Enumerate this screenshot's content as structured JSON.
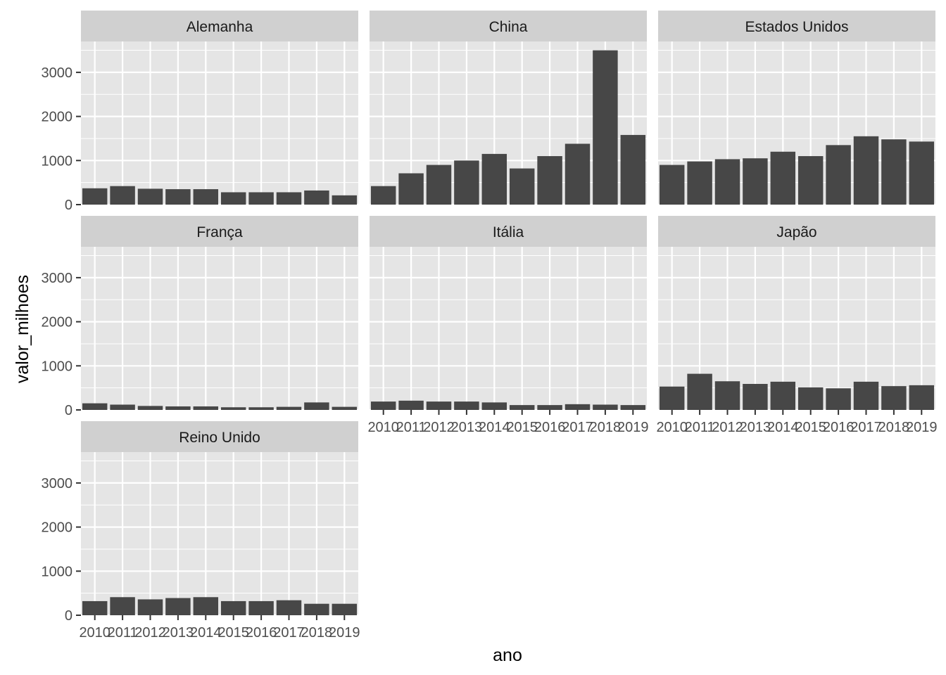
{
  "chart_data": {
    "type": "bar",
    "facet_layout": "wrap 3 columns",
    "xlabel": "ano",
    "ylabel": "valor_milhoes",
    "ylim": [
      0,
      3700
    ],
    "y_ticks": [
      0,
      1000,
      2000,
      3000
    ],
    "x_tick_labels": [
      "2010",
      "2011",
      "2012",
      "2013",
      "2014",
      "2015",
      "2016",
      "2017",
      "2018",
      "2019"
    ],
    "grid": true,
    "bar_color": "#474747",
    "panel_background": "#e5e5e5",
    "strip_background": "#d0d0d0",
    "grid_color": "#ffffff",
    "facets": [
      {
        "name": "Alemanha",
        "values": [
          370,
          420,
          360,
          350,
          350,
          280,
          280,
          280,
          320,
          210
        ]
      },
      {
        "name": "China",
        "values": [
          420,
          710,
          900,
          1000,
          1150,
          820,
          1100,
          1380,
          3500,
          1580
        ]
      },
      {
        "name": "Estados Unidos",
        "values": [
          900,
          980,
          1030,
          1050,
          1200,
          1100,
          1350,
          1550,
          1480,
          1430
        ]
      },
      {
        "name": "França",
        "values": [
          150,
          120,
          90,
          80,
          80,
          60,
          60,
          70,
          170,
          70
        ]
      },
      {
        "name": "Itália",
        "values": [
          190,
          210,
          190,
          190,
          170,
          110,
          110,
          130,
          120,
          110
        ]
      },
      {
        "name": "Japão",
        "values": [
          530,
          820,
          650,
          590,
          640,
          510,
          490,
          640,
          540,
          560
        ]
      },
      {
        "name": "Reino Unido",
        "values": [
          320,
          410,
          360,
          390,
          410,
          320,
          320,
          340,
          260,
          260
        ]
      }
    ]
  }
}
